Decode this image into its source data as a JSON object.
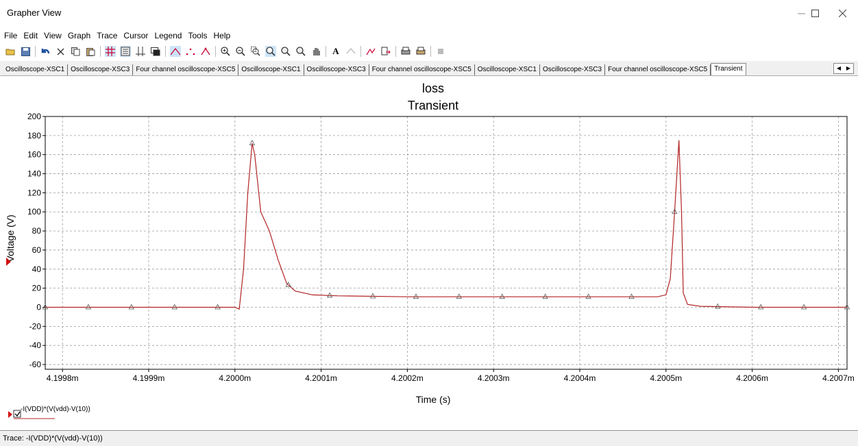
{
  "window": {
    "title": "Grapher View"
  },
  "menu": [
    "File",
    "Edit",
    "View",
    "Graph",
    "Trace",
    "Cursor",
    "Legend",
    "Tools",
    "Help"
  ],
  "tabs": [
    "Oscilloscope-XSC1",
    "Oscilloscope-XSC3",
    "Four channel oscilloscope-XSC5",
    "Oscilloscope-XSC1",
    "Oscilloscope-XSC3",
    "Four channel oscilloscope-XSC5",
    "Oscilloscope-XSC1",
    "Oscilloscope-XSC3",
    "Four channel oscilloscope-XSC5",
    "Transient"
  ],
  "active_tab": "Transient",
  "trace_color": "#b22222",
  "chart_data": {
    "type": "line",
    "title": "loss",
    "subtitle": "Transient",
    "xlabel": "Time (s)",
    "ylabel": "Voltage (V)",
    "xlim": [
      4.19978,
      4.20071
    ],
    "ylim": [
      -65,
      200
    ],
    "x_ticks": [
      4.1998,
      4.1999,
      4.2,
      4.2001,
      4.2002,
      4.2003,
      4.2004,
      4.2005,
      4.2006,
      4.2007
    ],
    "x_tick_labels": [
      "4.1998m",
      "4.1999m",
      "4.2000m",
      "4.2001m",
      "4.2002m",
      "4.2003m",
      "4.2004m",
      "4.2005m",
      "4.2006m",
      "4.2007m"
    ],
    "y_ticks": [
      -60,
      -40,
      -20,
      0,
      20,
      40,
      60,
      80,
      100,
      120,
      140,
      160,
      180,
      200
    ],
    "grid": true,
    "series": [
      {
        "name": "-I(VDD)*(V(vdd)-V(10))",
        "x": [
          4.19978,
          4.2,
          4.200005,
          4.20001,
          4.200015,
          4.20002,
          4.200023,
          4.20003,
          4.20004,
          4.20005,
          4.20006,
          4.20007,
          4.20009,
          4.20012,
          4.2002,
          4.2003,
          4.2004,
          4.20049,
          4.2005,
          4.200505,
          4.20051,
          4.200515,
          4.200518,
          4.20052,
          4.200525,
          4.20054,
          4.2006,
          4.20071
        ],
        "y": [
          0,
          0,
          -2,
          40,
          120,
          172,
          160,
          100,
          80,
          50,
          25,
          17,
          13,
          12,
          11,
          11,
          11,
          11,
          13,
          30,
          100,
          175,
          100,
          15,
          3,
          1,
          0,
          0
        ]
      }
    ],
    "marker_x": [
      4.19978,
      4.19983,
      4.19988,
      4.19993,
      4.19998,
      4.20002,
      4.200062,
      4.20011,
      4.20016,
      4.20021,
      4.20026,
      4.20031,
      4.20036,
      4.20041,
      4.20046,
      4.20051,
      4.20056,
      4.20061,
      4.20066,
      4.20071
    ],
    "legend": {
      "label": "-I(VDD)*(V(vdd)-V(10))",
      "position": "bottom-left"
    }
  },
  "status": {
    "text": "Trace: -I(VDD)*(V(vdd)-V(10))"
  }
}
